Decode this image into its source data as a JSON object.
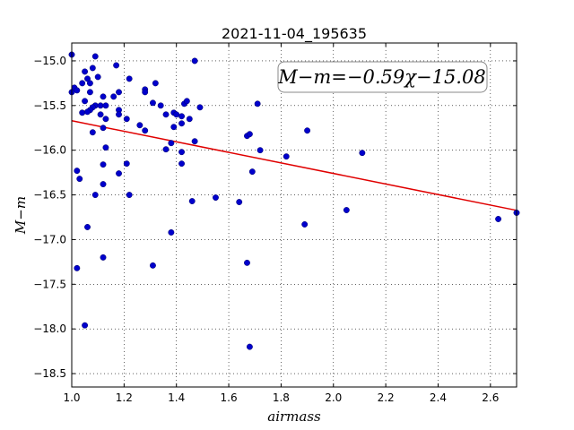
{
  "chart_data": {
    "type": "scatter",
    "title": "2021-11-04_195635",
    "xlabel": "airmass",
    "ylabel": "M−m",
    "xlim": [
      1.0,
      2.7
    ],
    "ylim": [
      -18.65,
      -14.8
    ],
    "y_inverted": true,
    "grid": true,
    "x_ticks": [
      1.0,
      1.2,
      1.4,
      1.6,
      1.8,
      2.0,
      2.2,
      2.4,
      2.6
    ],
    "x_tick_labels": [
      "1.0",
      "1.2",
      "1.4",
      "1.6",
      "1.8",
      "2.0",
      "2.2",
      "2.4",
      "2.6"
    ],
    "y_ticks": [
      -15.0,
      -15.5,
      -16.0,
      -16.5,
      -17.0,
      -17.5,
      -18.0,
      -18.5
    ],
    "y_tick_labels": [
      "−15.0",
      "−15.5",
      "−16.0",
      "−16.5",
      "−17.0",
      "−17.5",
      "−18.0",
      "−18.5"
    ],
    "annotation": "M−m=−0.59χ−15.08",
    "fit_line": {
      "slope": -0.59,
      "intercept": -15.08,
      "color": "#e00000"
    },
    "point_color": "#0000cc",
    "series": [
      {
        "points": [
          [
            1.0,
            -14.93
          ],
          [
            1.01,
            -15.3
          ],
          [
            1.0,
            -15.35
          ],
          [
            1.02,
            -15.33
          ],
          [
            1.04,
            -15.25
          ],
          [
            1.05,
            -15.12
          ],
          [
            1.06,
            -15.2
          ],
          [
            1.07,
            -15.25
          ],
          [
            1.08,
            -15.08
          ],
          [
            1.09,
            -14.95
          ],
          [
            1.07,
            -15.35
          ],
          [
            1.1,
            -15.18
          ],
          [
            1.05,
            -15.45
          ],
          [
            1.09,
            -15.5
          ],
          [
            1.11,
            -15.5
          ],
          [
            1.08,
            -15.52
          ],
          [
            1.07,
            -15.55
          ],
          [
            1.06,
            -15.57
          ],
          [
            1.04,
            -15.58
          ],
          [
            1.13,
            -15.5
          ],
          [
            1.11,
            -15.6
          ],
          [
            1.13,
            -15.65
          ],
          [
            1.12,
            -15.4
          ],
          [
            1.16,
            -15.4
          ],
          [
            1.18,
            -15.35
          ],
          [
            1.17,
            -15.05
          ],
          [
            1.08,
            -15.8
          ],
          [
            1.12,
            -15.75
          ],
          [
            1.18,
            -15.55
          ],
          [
            1.18,
            -15.6
          ],
          [
            1.21,
            -15.65
          ],
          [
            1.22,
            -15.2
          ],
          [
            1.28,
            -15.32
          ],
          [
            1.28,
            -15.35
          ],
          [
            1.26,
            -15.72
          ],
          [
            1.28,
            -15.78
          ],
          [
            1.32,
            -15.25
          ],
          [
            1.31,
            -15.47
          ],
          [
            1.34,
            -15.5
          ],
          [
            1.36,
            -15.6
          ],
          [
            1.39,
            -15.58
          ],
          [
            1.4,
            -15.6
          ],
          [
            1.42,
            -15.62
          ],
          [
            1.43,
            -15.48
          ],
          [
            1.44,
            -15.45
          ],
          [
            1.45,
            -15.65
          ],
          [
            1.39,
            -15.74
          ],
          [
            1.42,
            -15.7
          ],
          [
            1.38,
            -15.92
          ],
          [
            1.36,
            -15.99
          ],
          [
            1.42,
            -16.02
          ],
          [
            1.47,
            -15.0
          ],
          [
            1.49,
            -15.52
          ],
          [
            1.47,
            -15.9
          ],
          [
            1.42,
            -16.15
          ],
          [
            1.46,
            -16.57
          ],
          [
            1.55,
            -16.53
          ],
          [
            1.64,
            -16.58
          ],
          [
            1.67,
            -15.84
          ],
          [
            1.68,
            -15.82
          ],
          [
            1.71,
            -15.48
          ],
          [
            1.72,
            -16.0
          ],
          [
            1.69,
            -16.24
          ],
          [
            1.82,
            -16.07
          ],
          [
            1.9,
            -15.78
          ],
          [
            2.11,
            -16.03
          ],
          [
            1.13,
            -15.97
          ],
          [
            1.12,
            -16.16
          ],
          [
            1.12,
            -16.38
          ],
          [
            1.09,
            -16.5
          ],
          [
            1.18,
            -16.26
          ],
          [
            1.21,
            -16.15
          ],
          [
            1.22,
            -16.5
          ],
          [
            1.02,
            -16.23
          ],
          [
            1.03,
            -16.32
          ],
          [
            1.06,
            -16.86
          ],
          [
            1.02,
            -17.32
          ],
          [
            1.12,
            -17.2
          ],
          [
            1.31,
            -17.29
          ],
          [
            1.38,
            -16.92
          ],
          [
            1.67,
            -17.26
          ],
          [
            1.89,
            -16.83
          ],
          [
            2.05,
            -16.67
          ],
          [
            1.05,
            -17.96
          ],
          [
            1.68,
            -18.2
          ],
          [
            2.63,
            -16.77
          ],
          [
            2.7,
            -16.7
          ]
        ]
      }
    ]
  }
}
